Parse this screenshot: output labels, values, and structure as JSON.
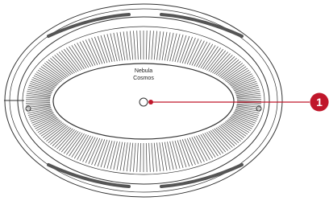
{
  "label": {
    "line1": "Nebula",
    "line2": "Cosmos"
  },
  "callout": "1"
}
